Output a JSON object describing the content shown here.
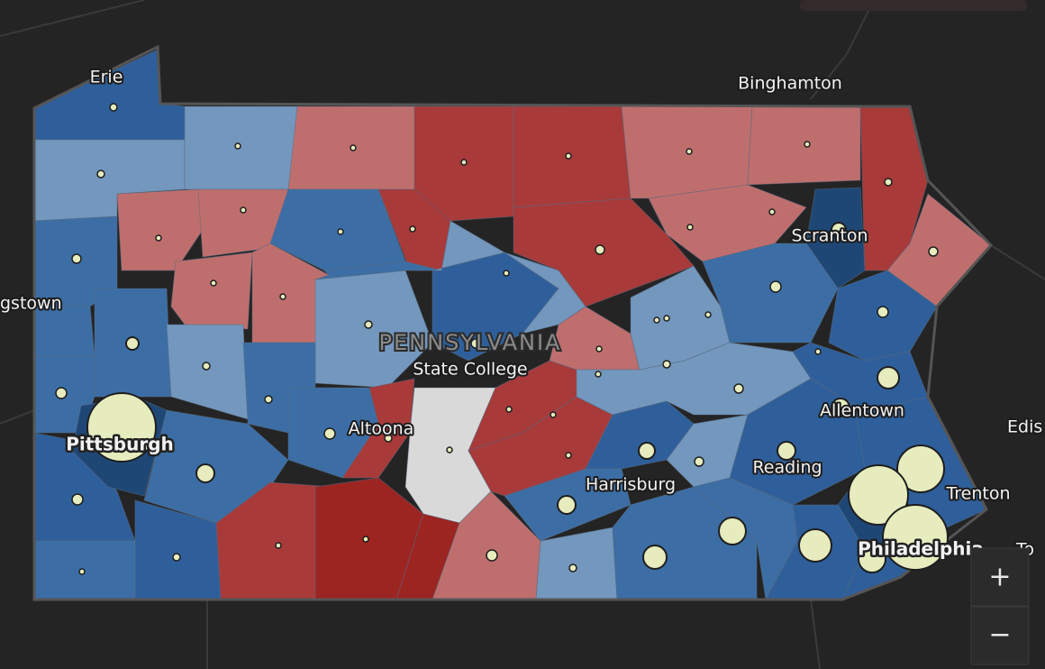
{
  "map": {
    "state_label": "PENNSYLVANIA",
    "places": [
      "Erie",
      "Binghamton",
      "gstown",
      "State College",
      "Scranton",
      "Altoona",
      "Pittsburgh",
      "Allentown",
      "Reading",
      "Harrisburg",
      "Trenton",
      "Philadelphia",
      "Edis",
      "To"
    ]
  },
  "controls": {
    "zoom_in": "+",
    "zoom_out": "−"
  }
}
